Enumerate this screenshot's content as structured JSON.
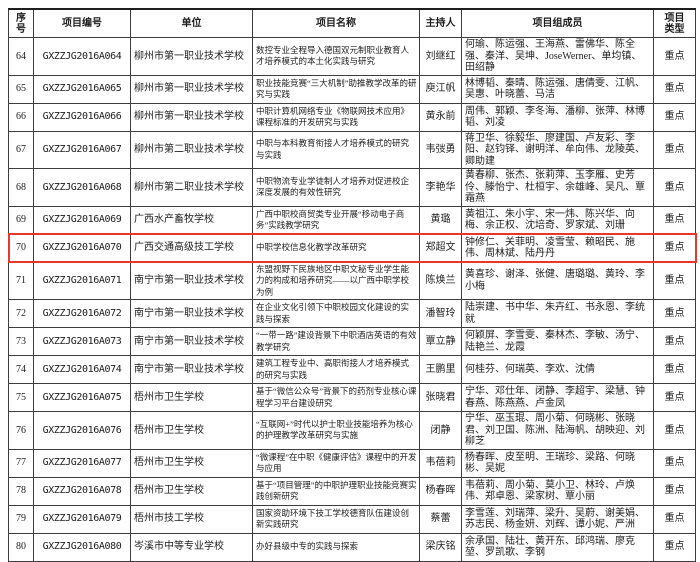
{
  "table": {
    "highlight_color": "#e8372a",
    "highlighted_row_no": "70",
    "columns": [
      "序\n号",
      "项目编号",
      "单位",
      "项目名称",
      "主持人",
      "项目组成员",
      "项目\n类型"
    ],
    "rows": [
      {
        "no": "64",
        "code": "GXZZJG2016A064",
        "unit": "柳州市第一职业技术学校",
        "name": "数控专业全程导入德国双元制职业教育人才培养模式的本土化实践与研究",
        "host": "刘继红",
        "members": "何瑜、陈运强、王海燕、雷佛华、陈全强、秦洋、吴坤、JoseWerner、单均镇、田绍静",
        "type": "重点",
        "highlighted": false
      },
      {
        "no": "65",
        "code": "GXZZJG2016A065",
        "unit": "柳州市第一职业技术学校",
        "name": "职业技能竞赛“三大机制”助推教学改革的研究与实践",
        "host": "庾江帆",
        "members": "林博韬、秦晴、陈运强、唐倩雯、江帆、吴惠、叶晓蕾、马洁",
        "type": "重点",
        "highlighted": false
      },
      {
        "no": "66",
        "code": "GXZZJG2016A066",
        "unit": "柳州市第一职业技术学校",
        "name": "中职计算机网络专业《物联网技术应用》课程标准的开发研究与实践",
        "host": "黄永前",
        "members": "周伟、郭颖、李冬海、潘柳、张萍、林博韬、刘凌",
        "type": "重点",
        "highlighted": false
      },
      {
        "no": "67",
        "code": "GXZZJG2016A067",
        "unit": "柳州市第二职业技术学校",
        "name": "中职与本科教育衔接人才培养模式的研究与实践",
        "host": "韦弢勇",
        "members": "蒋卫华、徐毅华、廖建国、卢友彩、李阳、赵钧铎、谢明洋、牟向伟、龙陵英、卿助建",
        "type": "重点",
        "highlighted": false
      },
      {
        "no": "68",
        "code": "GXZZJG2016A068",
        "unit": "柳州市第二职业技术学校",
        "name": "中职物流专业学徒制人才培养对促进校企深度发展的有效性研究",
        "host": "李艳华",
        "members": "黄春柳、张杰、张莉萍、玉李雁、史芳伶、滕怡宁、杜桓宇、余雄峰、吴凡、覃霜燕",
        "type": "重点",
        "highlighted": false
      },
      {
        "no": "69",
        "code": "GXZZJG2016A069",
        "unit": "广西水产畜牧学校",
        "name": "广西中职校商贸类专业开展“移动电子商务”实践教学研究",
        "host": "黄璐",
        "members": "黄祖江、朱小宇、宋一炜、陈兴华、向梅、余正权、沈培奇、罗家斌、刘珊",
        "type": "重点",
        "highlighted": false
      },
      {
        "no": "70",
        "code": "GXZZJG2016A070",
        "unit": "广西交通高级技工学校",
        "name": "中职学校信息化教学改革研究",
        "host": "郑超文",
        "members": "钟修仁、关菲明、凌雪莹、赖昭民、施伟、周林斌、陆丹丹",
        "type": "重点",
        "highlighted": true
      },
      {
        "no": "71",
        "code": "GXZZJG2016A071",
        "unit": "南宁市第一职业技术学校",
        "name": "东盟视野下民族地区中职文秘专业学生能力的构成和培养研究——以广西中职学校为例",
        "host": "陈焕兰",
        "members": "黄喜珍、谢泽、张健、唐璐璐、黄玲、李小梅",
        "type": "重点",
        "highlighted": false
      },
      {
        "no": "72",
        "code": "GXZZJG2016A072",
        "unit": "南宁市第一职业技术学校",
        "name": "在企业文化引领下中职校园文化建设的实践与探索",
        "host": "潘智玲",
        "members": "陆崇建、书中华、朱卉红、书永恩、李统就",
        "type": "重点",
        "highlighted": false
      },
      {
        "no": "73",
        "code": "GXZZJG2016A073",
        "unit": "南宁市第一职业技术学校",
        "name": "“一带一路”建设背景下中职酒店英语的有效教学研究",
        "host": "覃立静",
        "members": "何颖屏、李雪雯、秦林杰、李敏、汤宁、陆艳兰、龙霞",
        "type": "重点",
        "highlighted": false
      },
      {
        "no": "74",
        "code": "GXZZJG2016A074",
        "unit": "南宁市第一职业技术学校",
        "name": "建筑工程专业中、高职衔接人才培养模式的研究与实践",
        "host": "王鹏里",
        "members": "何桂芬、何瑞英、李欢、沈倩",
        "type": "重点",
        "highlighted": false
      },
      {
        "no": "75",
        "code": "GXZZJG2016A075",
        "unit": "梧州市卫生学校",
        "name": "基于“微信公众号”背景下的药剂专业核心课程学习平台建设研究",
        "host": "张晓君",
        "members": "宁华、邓仕年、闭静、李超宇、梁慧、钟春燕、陈燕燕、卢金凤",
        "type": "重点",
        "highlighted": false
      },
      {
        "no": "76",
        "code": "GXZZJG2016A076",
        "unit": "梧州市卫生学校",
        "name": "“互联网+”时代以护士职业技能培养为核心的护理教学改革研究与实施",
        "host": "闭静",
        "members": "宁华、巫玉琨、周小菊、何晓彬、张晓君、刘卫国、陈洲、陆海帆、胡映迎、刘柳芝",
        "type": "重点",
        "highlighted": false
      },
      {
        "no": "77",
        "code": "GXZZJG2016A077",
        "unit": "梧州市卫生学校",
        "name": "“微课程”在中职《健康评估》课程中的开发与应用",
        "host": "韦蓓莉",
        "members": "杨春晖、皮至明、王瑞珍、梁路、何晓彬、吴妮",
        "type": "重点",
        "highlighted": false
      },
      {
        "no": "78",
        "code": "GXZZJG2016A078",
        "unit": "梧州市卫生学校",
        "name": "基于“项目管理”的中职护理职业技能竞赛实践创新研究",
        "host": "杨春晖",
        "members": "韦蓓莉、周小菊、莫小卫、林玲、卢焕伟、郑卓恩、梁家树、覃小丽",
        "type": "重点",
        "highlighted": false
      },
      {
        "no": "79",
        "code": "GXZZJG2016A079",
        "unit": "梧州市技工学校",
        "name": "国家资助环境下技工学校德育队伍建设创新实践研究",
        "host": "蔡蕾",
        "members": "李雪莲、刘瑞萍、梁升、吴蔚、谢美娟、苏志民、杨金妍、刘辉、谭小妮、严洲",
        "type": "重点",
        "highlighted": false
      },
      {
        "no": "80",
        "code": "GXZZJG2016A080",
        "unit": "岑溪市中等专业学校",
        "name": "办好县级中专的实践与探索",
        "host": "梁庆铭",
        "members": "余承国、陆壮、黄开东、邱鸿瑞、廖克堃、罗凯歌、李钢",
        "type": "重点",
        "highlighted": false
      }
    ]
  }
}
